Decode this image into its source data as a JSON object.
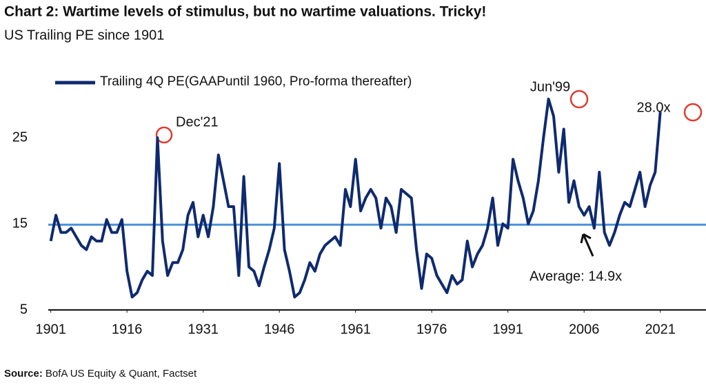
{
  "chart_data": {
    "type": "line",
    "title": "Chart 2: Wartime levels of stimulus, but no wartime valuations. Tricky!",
    "subtitle": "US Trailing PE since 1901",
    "x": [
      1901,
      1902,
      1903,
      1904,
      1905,
      1906,
      1907,
      1908,
      1909,
      1910,
      1911,
      1912,
      1913,
      1914,
      1915,
      1916,
      1917,
      1918,
      1919,
      1920,
      1921,
      1922,
      1923,
      1924,
      1925,
      1926,
      1927,
      1928,
      1929,
      1930,
      1931,
      1932,
      1933,
      1934,
      1935,
      1936,
      1937,
      1938,
      1939,
      1940,
      1941,
      1942,
      1943,
      1944,
      1945,
      1946,
      1947,
      1948,
      1949,
      1950,
      1951,
      1952,
      1953,
      1954,
      1955,
      1956,
      1957,
      1958,
      1959,
      1960,
      1961,
      1962,
      1963,
      1964,
      1965,
      1966,
      1967,
      1968,
      1969,
      1970,
      1971,
      1972,
      1973,
      1974,
      1975,
      1976,
      1977,
      1978,
      1979,
      1980,
      1981,
      1982,
      1983,
      1984,
      1985,
      1986,
      1987,
      1988,
      1989,
      1990,
      1991,
      1992,
      1993,
      1994,
      1995,
      1996,
      1997,
      1998,
      1999,
      2000,
      2001,
      2002,
      2003,
      2004,
      2005,
      2006,
      2007,
      2008,
      2009,
      2010,
      2011,
      2012,
      2013,
      2014,
      2015,
      2016,
      2017,
      2018,
      2019,
      2020,
      2021
    ],
    "series": [
      {
        "name": "Trailing 4Q PE(GAAPuntil  1960, Pro-forma thereafter)",
        "color": "#0f2a6e",
        "values": [
          13,
          16,
          14,
          14,
          14.5,
          13.5,
          12.5,
          12,
          13.5,
          13,
          13,
          15.5,
          14,
          14,
          15.5,
          9.5,
          6.5,
          7,
          8.5,
          9.5,
          9,
          25,
          13,
          9,
          10.5,
          10.5,
          12,
          16,
          17.5,
          13.5,
          16,
          13.5,
          17,
          23,
          20,
          17,
          17,
          9,
          20.5,
          10,
          9.5,
          7.8,
          10,
          12,
          14.5,
          22,
          12,
          9.5,
          6.5,
          7,
          8.5,
          10.5,
          9.5,
          11.5,
          12.5,
          13,
          13.5,
          12.5,
          19,
          17,
          22.5,
          16.5,
          18,
          19,
          18,
          14.5,
          18,
          17,
          14,
          19,
          18.5,
          18,
          12,
          7.5,
          11.5,
          11,
          9,
          8,
          7,
          9,
          8,
          8.5,
          13,
          10,
          11.5,
          12.5,
          14.5,
          18,
          12.5,
          15,
          14.5,
          22.5,
          20,
          18,
          15,
          16.5,
          20,
          25,
          29.5,
          27.5,
          21,
          26,
          17.5,
          20,
          17,
          16,
          17,
          14.5,
          21,
          14,
          12.5,
          14,
          16,
          17.5,
          17,
          19,
          21,
          17,
          19.5,
          21,
          28
        ]
      }
    ],
    "average_line": 14.9,
    "average_color": "#4a90d9",
    "xlim": [
      1900.5,
      2030
    ],
    "ylim": [
      5,
      31
    ],
    "xticks": [
      1901,
      1916,
      1931,
      1946,
      1961,
      1976,
      1991,
      2006,
      2021
    ],
    "yticks": [
      5,
      15,
      25
    ],
    "annotations": [
      "Dec'21",
      "Jun'99",
      "28.0x",
      "Average: 14.9x"
    ],
    "source_label": "Source:",
    "source_text": "BofA US Equity & Quant, Factset"
  }
}
